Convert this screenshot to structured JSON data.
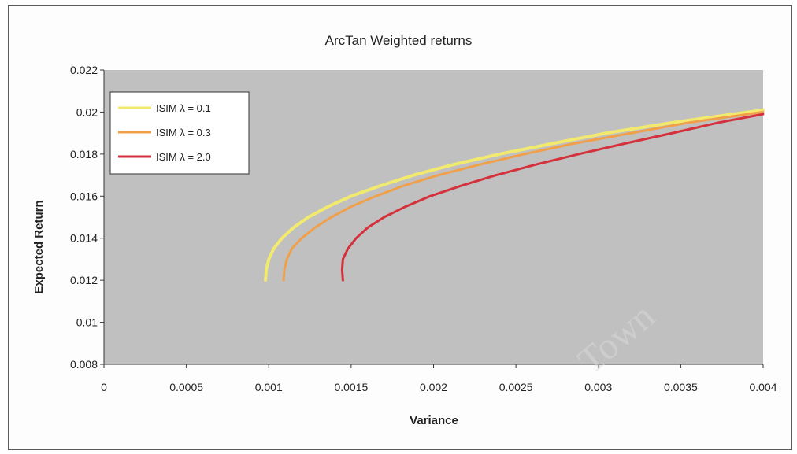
{
  "chart_data": {
    "type": "line",
    "title": "ArcTan Weighted returns",
    "xlabel": "Variance",
    "ylabel": "Expected Return",
    "xlim": [
      0,
      0.004
    ],
    "ylim": [
      0.008,
      0.022
    ],
    "x_ticks": [
      "0",
      "0.0005",
      "0.001",
      "0.0015",
      "0.002",
      "0.0025",
      "0.003",
      "0.0035",
      "0.004"
    ],
    "y_ticks": [
      "0.008",
      "0.01",
      "0.012",
      "0.014",
      "0.016",
      "0.018",
      "0.02",
      "0.022"
    ],
    "plot_background": "#c0c0c0",
    "legend_position": "top-left",
    "grid": false,
    "series": [
      {
        "name": "ISIM λ = 0.1",
        "color": "#f2ea6e",
        "points": [
          [
            0.00098,
            0.012
          ],
          [
            0.000985,
            0.0125
          ],
          [
            0.001,
            0.013
          ],
          [
            0.00103,
            0.0135
          ],
          [
            0.00108,
            0.014
          ],
          [
            0.00115,
            0.0145
          ],
          [
            0.00124,
            0.015
          ],
          [
            0.00136,
            0.0155
          ],
          [
            0.0015,
            0.016
          ],
          [
            0.00168,
            0.0165
          ],
          [
            0.00188,
            0.017
          ],
          [
            0.00212,
            0.0175
          ],
          [
            0.0024,
            0.018
          ],
          [
            0.00272,
            0.0185
          ],
          [
            0.00305,
            0.019
          ],
          [
            0.00345,
            0.0195
          ],
          [
            0.004,
            0.0201
          ]
        ]
      },
      {
        "name": "ISIM λ = 0.3",
        "color": "#f0a04a",
        "points": [
          [
            0.00109,
            0.012
          ],
          [
            0.001095,
            0.0125
          ],
          [
            0.00111,
            0.013
          ],
          [
            0.00114,
            0.0135
          ],
          [
            0.0012,
            0.014
          ],
          [
            0.00128,
            0.0145
          ],
          [
            0.00138,
            0.015
          ],
          [
            0.0015,
            0.0155
          ],
          [
            0.00165,
            0.016
          ],
          [
            0.00182,
            0.0165
          ],
          [
            0.00203,
            0.017
          ],
          [
            0.00228,
            0.0175
          ],
          [
            0.00255,
            0.018
          ],
          [
            0.00285,
            0.0185
          ],
          [
            0.0032,
            0.019
          ],
          [
            0.00355,
            0.0195
          ],
          [
            0.004,
            0.02
          ]
        ]
      },
      {
        "name": "ISIM λ = 2.0",
        "color": "#d4313c",
        "points": [
          [
            0.00145,
            0.012
          ],
          [
            0.001445,
            0.0125
          ],
          [
            0.00145,
            0.013
          ],
          [
            0.00148,
            0.0135
          ],
          [
            0.00153,
            0.014
          ],
          [
            0.0016,
            0.0145
          ],
          [
            0.0017,
            0.015
          ],
          [
            0.00183,
            0.0155
          ],
          [
            0.00198,
            0.016
          ],
          [
            0.00217,
            0.0165
          ],
          [
            0.00238,
            0.017
          ],
          [
            0.00262,
            0.0175
          ],
          [
            0.00288,
            0.018
          ],
          [
            0.00316,
            0.0185
          ],
          [
            0.00345,
            0.019
          ],
          [
            0.00373,
            0.0195
          ],
          [
            0.004,
            0.0199
          ]
        ]
      }
    ]
  },
  "watermark": "Town"
}
